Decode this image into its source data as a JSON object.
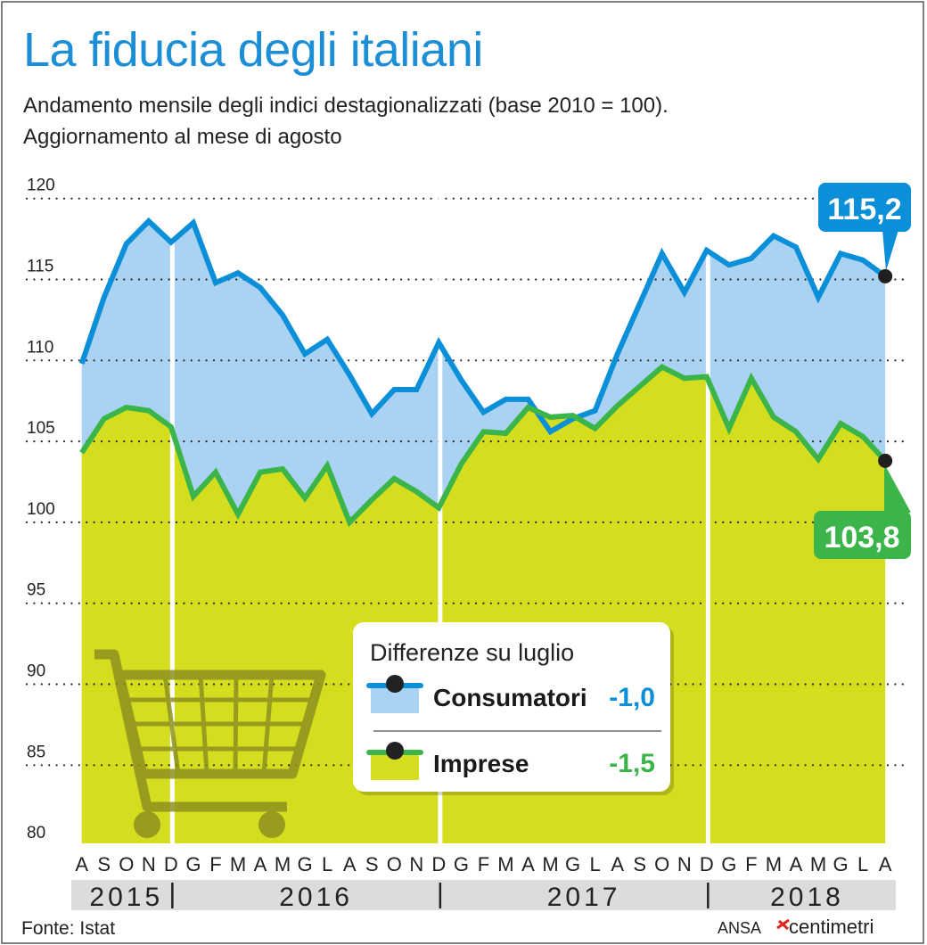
{
  "title": "La fiducia degli italiani",
  "subtitle_lines": [
    "Andamento mensile degli indici destagionalizzati (base 2010 = 100).",
    "Aggiornamento al mese di agosto"
  ],
  "colors": {
    "title": "#1b8ed6",
    "consumatori_line": "#0b8fd8",
    "consumatori_fill": "#a9d2f3",
    "imprese_line": "#3bb54a",
    "imprese_fill": "#d5dd1f",
    "cart_icon": "#8d9120"
  },
  "chart_data": {
    "type": "area",
    "title": "La fiducia degli italiani",
    "ylim": [
      80,
      120
    ],
    "yticks": [
      "120",
      "115",
      "110",
      "105",
      "100",
      "95",
      "90",
      "85",
      "80"
    ],
    "grid": true,
    "months": [
      "A",
      "S",
      "O",
      "N",
      "D",
      "G",
      "F",
      "M",
      "A",
      "M",
      "G",
      "L",
      "A",
      "S",
      "O",
      "N",
      "D",
      "G",
      "F",
      "M",
      "A",
      "M",
      "G",
      "L",
      "A",
      "S",
      "O",
      "N",
      "D",
      "G",
      "F",
      "M",
      "A",
      "M",
      "G",
      "L",
      "A"
    ],
    "years": [
      {
        "label": "2015",
        "months": 5
      },
      {
        "label": "2016",
        "months": 12
      },
      {
        "label": "2017",
        "months": 12
      },
      {
        "label": "2018",
        "months": 8
      }
    ],
    "series": [
      {
        "name": "Consumatori",
        "values": [
          109.8,
          113.9,
          117.2,
          118.6,
          117.3,
          118.5,
          114.8,
          115.4,
          114.5,
          112.8,
          110.4,
          111.3,
          109.1,
          106.7,
          108.2,
          108.2,
          111.1,
          108.8,
          106.8,
          107.6,
          107.6,
          105.6,
          106.4,
          106.9,
          110.4,
          113.5,
          116.6,
          114.2,
          116.8,
          115.9,
          116.3,
          117.7,
          117.0,
          113.9,
          116.6,
          116.2,
          115.2
        ],
        "last_label": "115,2"
      },
      {
        "name": "Imprese",
        "values": [
          104.3,
          106.4,
          107.1,
          106.9,
          105.9,
          101.6,
          103.1,
          100.5,
          103.1,
          103.3,
          101.5,
          103.5,
          100.0,
          101.4,
          102.7,
          101.9,
          100.9,
          103.6,
          105.6,
          105.5,
          107.1,
          106.5,
          106.6,
          105.8,
          107.2,
          108.4,
          109.6,
          108.9,
          109.0,
          105.8,
          108.9,
          106.5,
          105.6,
          103.9,
          106.1,
          105.3,
          103.8
        ],
        "last_label": "103,8"
      }
    ]
  },
  "legend": {
    "title": "Differenze su luglio",
    "items": [
      {
        "name": "Consumatori",
        "value": "-1,0"
      },
      {
        "name": "Imprese",
        "value": "-1,5"
      }
    ]
  },
  "footer": {
    "source": "Fonte: Istat",
    "brand_prefix": "ANSA",
    "brand_logo": "centimetri"
  }
}
